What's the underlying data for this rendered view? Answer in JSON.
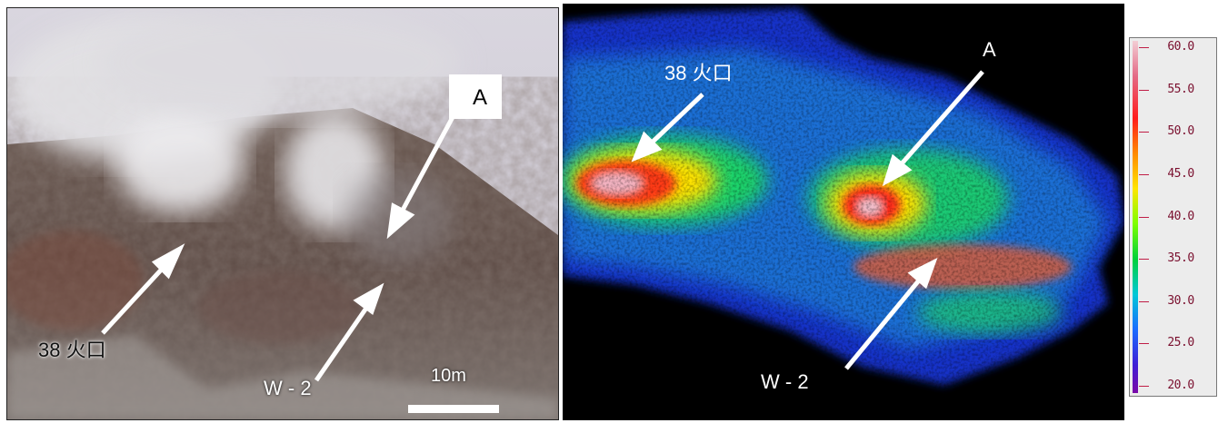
{
  "photo": {
    "labels": {
      "crater": "38 火口",
      "point_a": "A",
      "point_w2": "W - 2",
      "scale": "10m"
    }
  },
  "thermal": {
    "labels": {
      "crater": "38 火口",
      "point_a": "A",
      "point_w2": "W - 2"
    }
  },
  "colorbar": {
    "ticks": [
      "60.0",
      "55.0",
      "50.0",
      "45.0",
      "40.0",
      "35.0",
      "30.0",
      "25.0",
      "20.0"
    ]
  },
  "colors": {
    "arrow": "#ffffff",
    "tick": "#c01d46",
    "tick_label": "#7a0f2e"
  }
}
